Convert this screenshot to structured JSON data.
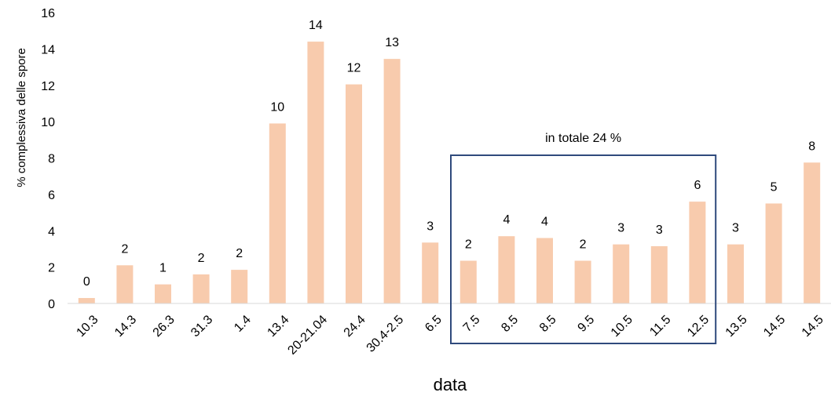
{
  "chart_data": {
    "type": "bar",
    "title": "",
    "xlabel": "data",
    "ylabel": "% complessiva delle spore",
    "ylim": [
      0,
      16
    ],
    "yticks": [
      0,
      2,
      4,
      6,
      8,
      10,
      12,
      14,
      16
    ],
    "grid": false,
    "legend": "none",
    "categories": [
      "10.3",
      "14.3",
      "26.3",
      "31.3",
      "1.4",
      "13.4",
      "20-21.04",
      "24.4",
      "30.4-2.5",
      "6.5",
      "7.5",
      "8.5",
      "8.5",
      "9.5",
      "10.5",
      "11.5",
      "12.5",
      "13.5",
      "14.5",
      "14.5"
    ],
    "values": [
      0.3,
      2.1,
      1.05,
      1.6,
      1.85,
      9.9,
      14.4,
      12.05,
      13.45,
      3.35,
      2.35,
      3.7,
      3.6,
      2.35,
      3.25,
      3.15,
      5.6,
      3.25,
      5.5,
      7.75
    ],
    "data_labels": [
      "0",
      "2",
      "1",
      "2",
      "2",
      "10",
      "14",
      "12",
      "13",
      "3",
      "2",
      "4",
      "4",
      "2",
      "3",
      "3",
      "6",
      "3",
      "5",
      "8"
    ],
    "bar_color": "#F8CBAD",
    "annotation": {
      "text": "in totale 24 %",
      "from_index": 10,
      "to_index": 16,
      "border_color": "#2F4A7C"
    }
  }
}
